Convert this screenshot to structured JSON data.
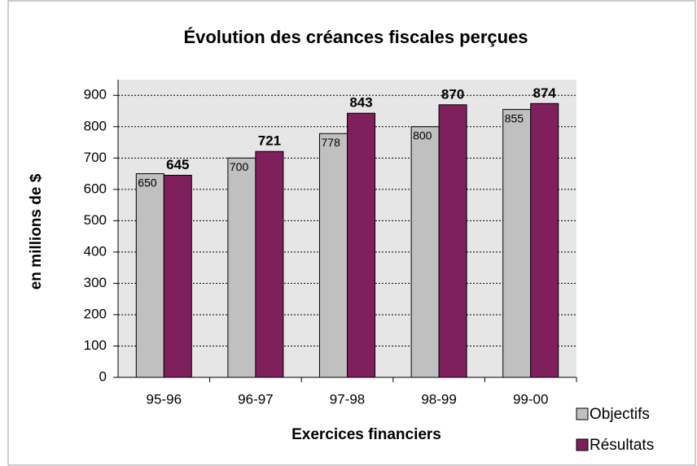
{
  "chart_data": {
    "type": "bar",
    "title": "Évolution des créances fiscales perçues",
    "y_label": "en millions de $",
    "x_label": "Exercices financiers",
    "categories": [
      "95-96",
      "96-97",
      "97-98",
      "98-99",
      "99-00"
    ],
    "series": [
      {
        "name": "Objectifs",
        "color": "#c0c0c0",
        "values": [
          650,
          700,
          778,
          800,
          855
        ]
      },
      {
        "name": "Résultats",
        "color": "#7f1f5c",
        "values": [
          645,
          721,
          843,
          870,
          874
        ]
      }
    ],
    "ylim": [
      0,
      950
    ],
    "yticks": [
      0,
      100,
      200,
      300,
      400,
      500,
      600,
      700,
      800,
      900
    ],
    "grid": true,
    "legend": "bottom-right"
  }
}
